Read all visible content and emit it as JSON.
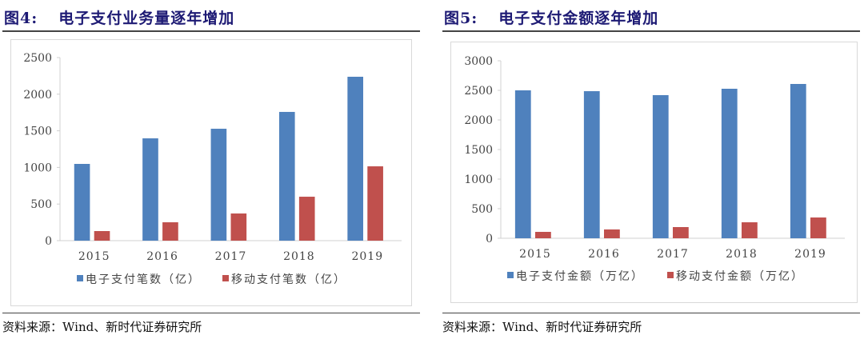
{
  "panels": [
    {
      "fig_label": "图4:",
      "title": "电子支付业务量逐年增加",
      "source": "资料来源：Wind、新时代证券研究所"
    },
    {
      "fig_label": "图5:",
      "title": "电子支付金额逐年增加",
      "source": "资料来源：Wind、新时代证券研究所"
    }
  ],
  "chart_data": [
    {
      "type": "bar",
      "categories": [
        "2015",
        "2016",
        "2017",
        "2018",
        "2019"
      ],
      "ylim": [
        0,
        2500
      ],
      "yticks": [
        0,
        500,
        1000,
        1500,
        2000,
        2500
      ],
      "grid": false,
      "legend": "bottom",
      "series": [
        {
          "name": "电子支付笔数（亿）",
          "color": "#4f81bd",
          "values": [
            1048,
            1397,
            1528,
            1758,
            2238
          ]
        },
        {
          "name": "移动支付笔数（亿）",
          "color": "#c0504d",
          "values": [
            131,
            251,
            371,
            600,
            1015
          ]
        }
      ]
    },
    {
      "type": "bar",
      "categories": [
        "2015",
        "2016",
        "2017",
        "2018",
        "2019"
      ],
      "ylim": [
        0,
        3000
      ],
      "yticks": [
        0,
        500,
        1000,
        1500,
        2000,
        2500,
        3000
      ],
      "grid": false,
      "legend": "bottom",
      "series": [
        {
          "name": "电子支付金额（万亿）",
          "color": "#4f81bd",
          "values": [
            2500,
            2486,
            2419,
            2527,
            2608
          ]
        },
        {
          "name": "移动支付金额（万亿）",
          "color": "#c0504d",
          "values": [
            108,
            149,
            189,
            270,
            351
          ]
        }
      ]
    }
  ]
}
